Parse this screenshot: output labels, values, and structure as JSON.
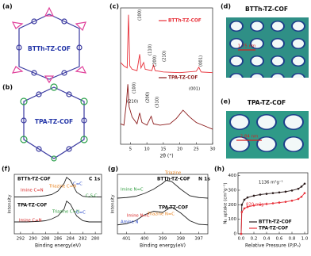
{
  "panel_labels": [
    "(a)",
    "(b)",
    "(c)",
    "(d)",
    "(e)",
    "(f)",
    "(g)",
    "(h)"
  ],
  "structures": [
    "BTTh-TZ-COF",
    "TPA-TZ-COF"
  ],
  "pores": [
    {
      "title": "BTTh-TZ-COF",
      "size": "1.75 nm"
    },
    {
      "title": "TPA-TZ-COF",
      "size": "2.84 nm"
    }
  ],
  "chart_data": [
    {
      "type": "line",
      "xlabel": "2θ (°)",
      "xlim": [
        2,
        30
      ],
      "xticks": [
        5,
        10,
        15,
        20,
        25,
        30
      ],
      "ylim": [
        0,
        200
      ],
      "series": [
        {
          "name": "BTTh-TZ-COF",
          "color": "#e8313a",
          "x": [
            2,
            3,
            4,
            4.4,
            4.8,
            5.5,
            7,
            7.8,
            8.2,
            9,
            9.5,
            11.5,
            12,
            12.5,
            15,
            20,
            25,
            25.8,
            26.5,
            30
          ],
          "values": [
            120,
            115,
            112,
            190,
            115,
            110,
            108,
            132,
            112,
            120,
            110,
            108,
            116,
            108,
            106,
            105,
            107,
            113,
            106,
            105
          ]
        },
        {
          "name": "TPA-TZ-COF",
          "color": "#8b1a1a",
          "x": [
            2,
            3,
            3.8,
            4.2,
            4.6,
            5.5,
            7,
            7.8,
            8.5,
            10,
            11.3,
            12,
            14,
            17,
            19,
            21,
            23,
            25,
            28,
            30
          ],
          "values": [
            30,
            28,
            62,
            88,
            55,
            40,
            30,
            46,
            32,
            28,
            41,
            30,
            28,
            30,
            38,
            50,
            40,
            32,
            26,
            22
          ]
        }
      ],
      "annotations": [
        {
          "text": "(100)",
          "color": "#111"
        },
        {
          "text": "(110)",
          "color": "#111"
        },
        {
          "text": "(200)",
          "color": "#111"
        },
        {
          "text": "(210)",
          "color": "#111"
        },
        {
          "text": "(001)",
          "color": "#111"
        },
        {
          "text": "(100)",
          "color": "#111"
        },
        {
          "text": "(210)",
          "color": "#111"
        },
        {
          "text": "(200)",
          "color": "#111"
        },
        {
          "text": "(310)",
          "color": "#111"
        },
        {
          "text": "(001)",
          "color": "#111"
        }
      ]
    },
    {
      "type": "line",
      "title": "C 1s",
      "xlabel": "Binding energy(eV)",
      "ylabel": "Intensity",
      "xlim": [
        293,
        279
      ],
      "xticks": [
        292,
        290,
        288,
        286,
        284,
        282,
        280
      ],
      "ylim": [
        0,
        100
      ],
      "series": [
        {
          "name": "BTTh-TZ-COF",
          "color": "#222",
          "x": [
            293,
            291,
            289,
            288,
            287,
            286,
            285,
            284.6,
            284,
            283,
            282,
            281,
            280,
            279
          ],
          "values": [
            62,
            62,
            63,
            64,
            66,
            72,
            85,
            95,
            90,
            70,
            63,
            62,
            62,
            62
          ]
        },
        {
          "name": "TPA-TZ-COF",
          "color": "#222",
          "x": [
            293,
            291,
            289,
            288,
            287,
            286,
            285,
            284.6,
            284,
            283,
            282,
            281,
            280,
            279
          ],
          "values": [
            20,
            20,
            21,
            22,
            25,
            30,
            42,
            55,
            50,
            30,
            22,
            20,
            20,
            20
          ]
        }
      ],
      "annotations": [
        {
          "text": "C=C",
          "color": "#2848c8"
        },
        {
          "text": "Triazine C=N",
          "color": "#e8801a"
        },
        {
          "text": "Imine C=N",
          "color": "#d82020"
        },
        {
          "text": "C-S-C",
          "color": "#2a9a3a"
        },
        {
          "text": "Triazine C=N",
          "color": "#2a9a3a"
        },
        {
          "text": "C=C",
          "color": "#2848c8"
        },
        {
          "text": "Imine C=N",
          "color": "#d82020"
        }
      ]
    },
    {
      "type": "line",
      "title": "N 1s",
      "xlabel": "Binding energy(eV)",
      "ylabel": "Intensity",
      "xlim": [
        401.5,
        396.5
      ],
      "xticks": [
        401,
        400,
        399,
        398,
        397
      ],
      "ylim": [
        0,
        100
      ],
      "series": [
        {
          "name": "BTTh-TZ-COF",
          "color": "#222",
          "x": [
            401.5,
            401,
            400.5,
            400,
            399.5,
            399,
            398.8,
            398.5,
            398,
            397.5,
            397,
            396.5
          ],
          "values": [
            60,
            61,
            63,
            68,
            75,
            85,
            90,
            88,
            75,
            64,
            61,
            60
          ]
        },
        {
          "name": "TPA-TZ-COF",
          "color": "#222",
          "x": [
            401.5,
            401,
            400.5,
            400,
            399.5,
            399,
            398.8,
            398.5,
            398,
            397.5,
            397,
            396.5
          ],
          "values": [
            15,
            17,
            22,
            32,
            38,
            36,
            40,
            45,
            35,
            22,
            16,
            15
          ]
        }
      ],
      "annotations": [
        {
          "text": "Triazine",
          "color": "#e8801a"
        },
        {
          "text": "Imine N=C",
          "color": "#2a9a3a"
        },
        {
          "text": "Amine N",
          "color": "#2848c8"
        },
        {
          "text": "Imine N=C",
          "color": "#d82020"
        },
        {
          "text": "Triazine N=C",
          "color": "#e8801a"
        }
      ]
    },
    {
      "type": "line",
      "markers": true,
      "xlabel": "Relative Pressure (P/P₀)",
      "ylabel": "N₂ uptake (cm³g⁻¹)",
      "xlim": [
        -0.05,
        1.05
      ],
      "xticks": [
        {
          "value": 0,
          "label": "0.0"
        },
        0.2,
        0.4,
        0.6,
        0.8,
        {
          "value": 1,
          "label": "1.0"
        }
      ],
      "ylim": [
        0,
        420
      ],
      "yticks": [
        0,
        100,
        200,
        300,
        400
      ],
      "series": [
        {
          "name": "BTTh-TZ-COF",
          "color": "#2a1a1a",
          "x": [
            0,
            0.01,
            0.05,
            0.1,
            0.2,
            0.3,
            0.4,
            0.5,
            0.6,
            0.7,
            0.8,
            0.9,
            0.95,
            1.0
          ],
          "values": [
            0,
            200,
            235,
            250,
            262,
            270,
            275,
            280,
            285,
            290,
            298,
            310,
            325,
            345
          ]
        },
        {
          "name": "TPA-TZ-COF",
          "color": "#e8313a",
          "x": [
            0,
            0.01,
            0.05,
            0.1,
            0.2,
            0.3,
            0.4,
            0.5,
            0.6,
            0.7,
            0.8,
            0.9,
            0.95,
            1.0
          ],
          "values": [
            0,
            150,
            175,
            185,
            195,
            200,
            205,
            210,
            215,
            220,
            228,
            240,
            255,
            280
          ]
        }
      ],
      "annotations": [
        {
          "text": "1136 m²g⁻¹",
          "color": "#111"
        },
        {
          "text": "820 m²g⁻¹",
          "color": "#e8313a"
        }
      ]
    }
  ]
}
